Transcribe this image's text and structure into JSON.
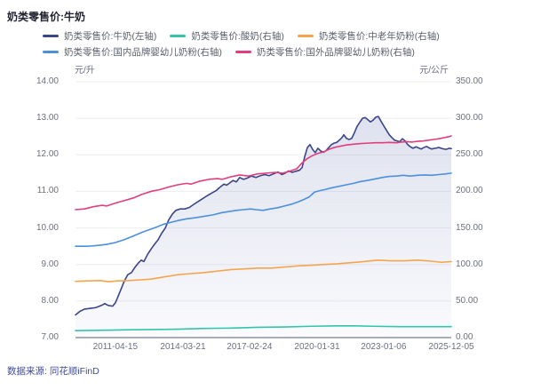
{
  "title": "奶类零售价:牛奶",
  "source": "数据来源: 同花顺iFinD",
  "chart_data": {
    "type": "line",
    "grid": true,
    "legend_position": "top",
    "x_axis": {
      "labels": [
        "2011-04-15",
        "2014-03-21",
        "2017-02-24",
        "2020-01-31",
        "2023-01-06",
        "2025-12-05"
      ],
      "label_positions": [
        0.106,
        0.286,
        0.463,
        0.643,
        0.82,
        1.0
      ]
    },
    "left_axis": {
      "unit": "元/升",
      "min": 7,
      "max": 14,
      "ticks": [
        "14.00",
        "13.00",
        "12.00",
        "11.00",
        "10.00",
        "9.00",
        "8.00",
        "7.00"
      ]
    },
    "right_axis": {
      "unit": "元/公斤",
      "min": 0,
      "max": 350,
      "ticks": [
        "350.00",
        "300.00",
        "250.00",
        "200.00",
        "150.00",
        "100.00",
        "50.00",
        "0.00"
      ]
    },
    "colors": {
      "milk": "#3a4688",
      "yogurt": "#33c4ab",
      "elderly_powder": "#f5a44c",
      "domestic_infant": "#4b90dd",
      "foreign_infant": "#e23d7d",
      "grid": "#ededf2",
      "axis_line": "#a9aeb8",
      "area_fill": "#5d6bad"
    },
    "series": [
      {
        "name": "奶类零售价:牛奶(左轴)",
        "axis": "left",
        "color": "#3a4688",
        "area": true,
        "points": [
          [
            0.0,
            7.62
          ],
          [
            0.012,
            7.72
          ],
          [
            0.024,
            7.78
          ],
          [
            0.04,
            7.8
          ],
          [
            0.054,
            7.82
          ],
          [
            0.069,
            7.88
          ],
          [
            0.078,
            7.93
          ],
          [
            0.087,
            7.88
          ],
          [
            0.099,
            7.86
          ],
          [
            0.106,
            7.95
          ],
          [
            0.113,
            8.12
          ],
          [
            0.121,
            8.32
          ],
          [
            0.13,
            8.55
          ],
          [
            0.139,
            8.72
          ],
          [
            0.149,
            8.78
          ],
          [
            0.158,
            8.92
          ],
          [
            0.168,
            9.05
          ],
          [
            0.175,
            9.12
          ],
          [
            0.182,
            9.08
          ],
          [
            0.192,
            9.28
          ],
          [
            0.201,
            9.42
          ],
          [
            0.21,
            9.55
          ],
          [
            0.22,
            9.68
          ],
          [
            0.229,
            9.85
          ],
          [
            0.239,
            10.0
          ],
          [
            0.248,
            10.22
          ],
          [
            0.258,
            10.38
          ],
          [
            0.267,
            10.48
          ],
          [
            0.279,
            10.52
          ],
          [
            0.291,
            10.52
          ],
          [
            0.303,
            10.56
          ],
          [
            0.314,
            10.64
          ],
          [
            0.326,
            10.72
          ],
          [
            0.338,
            10.8
          ],
          [
            0.35,
            10.88
          ],
          [
            0.362,
            10.95
          ],
          [
            0.374,
            11.02
          ],
          [
            0.385,
            11.12
          ],
          [
            0.395,
            11.2
          ],
          [
            0.402,
            11.17
          ],
          [
            0.409,
            11.22
          ],
          [
            0.419,
            11.3
          ],
          [
            0.428,
            11.26
          ],
          [
            0.437,
            11.38
          ],
          [
            0.447,
            11.33
          ],
          [
            0.456,
            11.36
          ],
          [
            0.468,
            11.42
          ],
          [
            0.48,
            11.38
          ],
          [
            0.492,
            11.43
          ],
          [
            0.504,
            11.46
          ],
          [
            0.515,
            11.43
          ],
          [
            0.527,
            11.48
          ],
          [
            0.539,
            11.53
          ],
          [
            0.549,
            11.46
          ],
          [
            0.558,
            11.5
          ],
          [
            0.567,
            11.56
          ],
          [
            0.577,
            11.52
          ],
          [
            0.586,
            11.55
          ],
          [
            0.596,
            11.58
          ],
          [
            0.603,
            11.65
          ],
          [
            0.61,
            11.95
          ],
          [
            0.617,
            12.2
          ],
          [
            0.624,
            12.28
          ],
          [
            0.631,
            12.15
          ],
          [
            0.638,
            12.06
          ],
          [
            0.645,
            12.18
          ],
          [
            0.653,
            12.1
          ],
          [
            0.66,
            12.07
          ],
          [
            0.667,
            12.12
          ],
          [
            0.674,
            12.2
          ],
          [
            0.681,
            12.28
          ],
          [
            0.688,
            12.32
          ],
          [
            0.695,
            12.34
          ],
          [
            0.702,
            12.4
          ],
          [
            0.709,
            12.47
          ],
          [
            0.714,
            12.55
          ],
          [
            0.721,
            12.45
          ],
          [
            0.728,
            12.42
          ],
          [
            0.735,
            12.45
          ],
          [
            0.742,
            12.6
          ],
          [
            0.749,
            12.77
          ],
          [
            0.757,
            12.9
          ],
          [
            0.764,
            13.0
          ],
          [
            0.771,
            13.02
          ],
          [
            0.778,
            12.96
          ],
          [
            0.785,
            12.9
          ],
          [
            0.792,
            12.95
          ],
          [
            0.799,
            13.03
          ],
          [
            0.806,
            13.05
          ],
          [
            0.813,
            12.92
          ],
          [
            0.82,
            12.8
          ],
          [
            0.827,
            12.68
          ],
          [
            0.835,
            12.55
          ],
          [
            0.842,
            12.47
          ],
          [
            0.849,
            12.4
          ],
          [
            0.856,
            12.38
          ],
          [
            0.863,
            12.36
          ],
          [
            0.87,
            12.44
          ],
          [
            0.877,
            12.38
          ],
          [
            0.884,
            12.28
          ],
          [
            0.891,
            12.22
          ],
          [
            0.898,
            12.18
          ],
          [
            0.906,
            12.22
          ],
          [
            0.913,
            12.19
          ],
          [
            0.92,
            12.16
          ],
          [
            0.927,
            12.2
          ],
          [
            0.934,
            12.23
          ],
          [
            0.941,
            12.19
          ],
          [
            0.948,
            12.16
          ],
          [
            0.957,
            12.18
          ],
          [
            0.967,
            12.2
          ],
          [
            0.976,
            12.17
          ],
          [
            0.986,
            12.15
          ],
          [
            0.995,
            12.18
          ],
          [
            1.0,
            12.17
          ]
        ]
      },
      {
        "name": "奶类零售价:酸奶(右轴)",
        "axis": "right",
        "color": "#33c4ab",
        "area": false,
        "points": [
          [
            0.0,
            9.5
          ],
          [
            0.059,
            10
          ],
          [
            0.13,
            10.5
          ],
          [
            0.201,
            11
          ],
          [
            0.272,
            11.5
          ],
          [
            0.343,
            12.5
          ],
          [
            0.414,
            13
          ],
          [
            0.485,
            14
          ],
          [
            0.556,
            14.5
          ],
          [
            0.627,
            15.5
          ],
          [
            0.698,
            16
          ],
          [
            0.745,
            16
          ],
          [
            0.792,
            15.5
          ],
          [
            0.863,
            15
          ],
          [
            0.934,
            15
          ],
          [
            1.0,
            15
          ]
        ]
      },
      {
        "name": "奶类零售价:中老年奶粉(右轴)",
        "axis": "right",
        "color": "#f5a44c",
        "area": false,
        "points": [
          [
            0.0,
            77
          ],
          [
            0.035,
            77.5
          ],
          [
            0.064,
            78
          ],
          [
            0.087,
            76.5
          ],
          [
            0.111,
            77.5
          ],
          [
            0.142,
            78
          ],
          [
            0.173,
            79
          ],
          [
            0.201,
            80
          ],
          [
            0.236,
            83
          ],
          [
            0.272,
            86
          ],
          [
            0.307,
            87.5
          ],
          [
            0.343,
            89
          ],
          [
            0.378,
            91
          ],
          [
            0.414,
            93
          ],
          [
            0.449,
            94
          ],
          [
            0.485,
            95
          ],
          [
            0.52,
            95
          ],
          [
            0.556,
            96.5
          ],
          [
            0.591,
            98
          ],
          [
            0.627,
            99
          ],
          [
            0.662,
            100
          ],
          [
            0.698,
            101
          ],
          [
            0.733,
            102.5
          ],
          [
            0.768,
            104
          ],
          [
            0.804,
            106
          ],
          [
            0.839,
            105
          ],
          [
            0.875,
            105
          ],
          [
            0.91,
            106
          ],
          [
            0.946,
            104.5
          ],
          [
            0.974,
            103
          ],
          [
            1.0,
            104
          ]
        ]
      },
      {
        "name": "奶类零售价:国内品牌婴幼儿奶粉(右轴)",
        "axis": "right",
        "color": "#4b90dd",
        "area": false,
        "points": [
          [
            0.0,
            125
          ],
          [
            0.035,
            125
          ],
          [
            0.059,
            126
          ],
          [
            0.083,
            127.5
          ],
          [
            0.106,
            130
          ],
          [
            0.13,
            134
          ],
          [
            0.154,
            139
          ],
          [
            0.177,
            144
          ],
          [
            0.196,
            147.5
          ],
          [
            0.215,
            151
          ],
          [
            0.234,
            155
          ],
          [
            0.253,
            157.5
          ],
          [
            0.272,
            160
          ],
          [
            0.296,
            162.5
          ],
          [
            0.319,
            164
          ],
          [
            0.343,
            166
          ],
          [
            0.367,
            168
          ],
          [
            0.39,
            171
          ],
          [
            0.409,
            172.5
          ],
          [
            0.428,
            174
          ],
          [
            0.447,
            175
          ],
          [
            0.466,
            176
          ],
          [
            0.48,
            175
          ],
          [
            0.499,
            174
          ],
          [
            0.518,
            176
          ],
          [
            0.537,
            177.5
          ],
          [
            0.556,
            180
          ],
          [
            0.575,
            182.5
          ],
          [
            0.594,
            186
          ],
          [
            0.608,
            189
          ],
          [
            0.622,
            192.5
          ],
          [
            0.636,
            199
          ],
          [
            0.65,
            201
          ],
          [
            0.664,
            202.5
          ],
          [
            0.683,
            205
          ],
          [
            0.702,
            207
          ],
          [
            0.721,
            209
          ],
          [
            0.74,
            211
          ],
          [
            0.759,
            213.5
          ],
          [
            0.778,
            215
          ],
          [
            0.797,
            217
          ],
          [
            0.816,
            219
          ],
          [
            0.835,
            220.5
          ],
          [
            0.854,
            221
          ],
          [
            0.872,
            222
          ],
          [
            0.891,
            221
          ],
          [
            0.91,
            222
          ],
          [
            0.929,
            222.5
          ],
          [
            0.948,
            222
          ],
          [
            0.967,
            223
          ],
          [
            0.986,
            224
          ],
          [
            1.0,
            225
          ]
        ]
      },
      {
        "name": "奶类零售价:国外品牌婴幼儿奶粉(右轴)",
        "axis": "right",
        "color": "#e23d7d",
        "area": false,
        "points": [
          [
            0.0,
            175
          ],
          [
            0.024,
            176
          ],
          [
            0.047,
            179
          ],
          [
            0.071,
            181
          ],
          [
            0.083,
            180
          ],
          [
            0.106,
            184
          ],
          [
            0.13,
            187.5
          ],
          [
            0.154,
            191
          ],
          [
            0.177,
            196
          ],
          [
            0.201,
            200
          ],
          [
            0.225,
            202.5
          ],
          [
            0.248,
            206
          ],
          [
            0.272,
            209
          ],
          [
            0.296,
            211
          ],
          [
            0.307,
            210
          ],
          [
            0.331,
            214
          ],
          [
            0.355,
            216.5
          ],
          [
            0.378,
            217.5
          ],
          [
            0.39,
            216.5
          ],
          [
            0.414,
            220
          ],
          [
            0.437,
            222.5
          ],
          [
            0.461,
            221
          ],
          [
            0.485,
            224
          ],
          [
            0.508,
            225
          ],
          [
            0.532,
            226
          ],
          [
            0.551,
            225
          ],
          [
            0.57,
            227.5
          ],
          [
            0.589,
            231
          ],
          [
            0.603,
            239
          ],
          [
            0.617,
            245
          ],
          [
            0.631,
            249
          ],
          [
            0.645,
            252
          ],
          [
            0.66,
            254
          ],
          [
            0.674,
            257.5
          ],
          [
            0.688,
            260
          ],
          [
            0.702,
            261.5
          ],
          [
            0.721,
            263.5
          ],
          [
            0.74,
            264.5
          ],
          [
            0.759,
            265.5
          ],
          [
            0.778,
            266
          ],
          [
            0.797,
            266.5
          ],
          [
            0.816,
            266.5
          ],
          [
            0.835,
            267
          ],
          [
            0.854,
            266.5
          ],
          [
            0.868,
            267.5
          ],
          [
            0.882,
            268
          ],
          [
            0.896,
            267.5
          ],
          [
            0.91,
            268.5
          ],
          [
            0.925,
            269
          ],
          [
            0.939,
            270
          ],
          [
            0.953,
            271
          ],
          [
            0.967,
            272
          ],
          [
            0.981,
            273.5
          ],
          [
            0.995,
            275
          ],
          [
            1.0,
            276
          ]
        ]
      }
    ]
  }
}
